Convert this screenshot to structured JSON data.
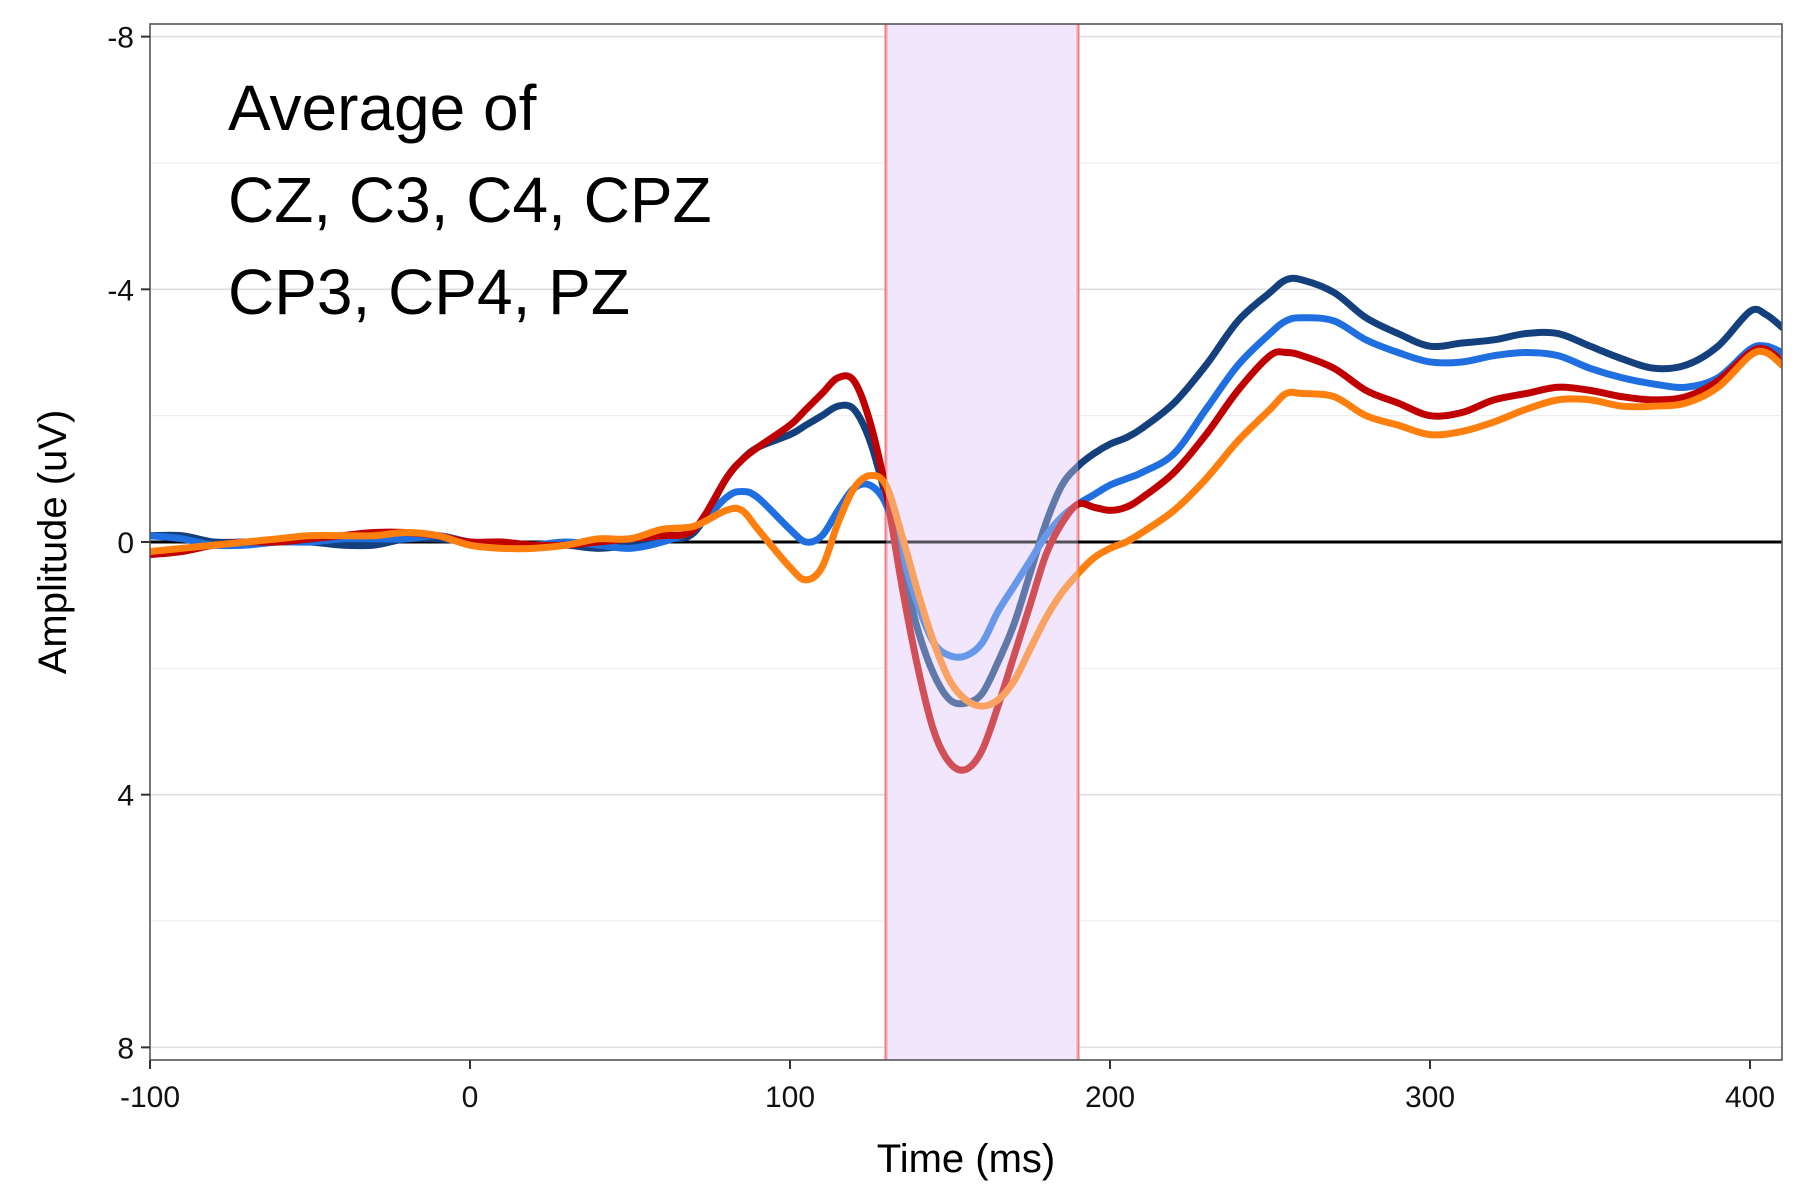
{
  "chart_data": {
    "type": "line",
    "title": "",
    "xlabel": "Time (ms)",
    "ylabel": "Amplitude (uV)",
    "xlim": [
      -100,
      410
    ],
    "ylim": [
      -8.2,
      8.2
    ],
    "y_reversed": true,
    "x_ticks": [
      -100,
      0,
      100,
      200,
      300,
      400
    ],
    "x_tick_labels": [
      "-100",
      "0",
      "100",
      "200",
      "300",
      "400"
    ],
    "y_ticks": [
      -8,
      -4,
      0,
      4,
      8
    ],
    "y_tick_labels": [
      "-8",
      "-4",
      "0",
      "4",
      "8"
    ],
    "grid": true,
    "legend": "none",
    "annotation": {
      "lines": [
        "Average of",
        "CZ, C3, C4, CPZ",
        "CP3, CP4, PZ"
      ]
    },
    "highlight_window": {
      "x_start": 130,
      "x_end": 190,
      "fill": "#f1e6fb",
      "edge_color": "#f08080"
    },
    "zero_line": 0,
    "x": [
      -100,
      -90,
      -80,
      -70,
      -60,
      -50,
      -40,
      -30,
      -20,
      -10,
      0,
      10,
      20,
      30,
      40,
      50,
      60,
      70,
      80,
      85,
      90,
      100,
      105,
      110,
      115,
      120,
      125,
      130,
      135,
      140,
      145,
      150,
      155,
      160,
      165,
      170,
      175,
      180,
      185,
      190,
      195,
      200,
      205,
      210,
      220,
      230,
      240,
      250,
      255,
      260,
      270,
      280,
      290,
      300,
      310,
      320,
      330,
      340,
      350,
      360,
      370,
      380,
      390,
      400,
      405,
      410
    ],
    "series": [
      {
        "color": "#14407d",
        "values": [
          -0.1,
          -0.1,
          0.0,
          0.0,
          0.0,
          0.0,
          0.05,
          0.05,
          -0.05,
          -0.05,
          0.0,
          0.05,
          0.05,
          0.05,
          0.1,
          0.05,
          -0.05,
          -0.15,
          -1.0,
          -1.3,
          -1.5,
          -1.7,
          -1.85,
          -2.0,
          -2.15,
          -2.1,
          -1.6,
          -0.7,
          0.4,
          1.4,
          2.1,
          2.5,
          2.55,
          2.4,
          1.9,
          1.3,
          0.5,
          -0.3,
          -0.9,
          -1.2,
          -1.4,
          -1.55,
          -1.65,
          -1.8,
          -2.2,
          -2.8,
          -3.5,
          -3.95,
          -4.15,
          -4.15,
          -3.95,
          -3.55,
          -3.3,
          -3.1,
          -3.15,
          -3.2,
          -3.3,
          -3.3,
          -3.1,
          -2.9,
          -2.75,
          -2.8,
          -3.1,
          -3.65,
          -3.6,
          -3.4
        ]
      },
      {
        "color": "#1f6fe0",
        "values": [
          -0.1,
          -0.05,
          0.05,
          0.05,
          0.0,
          0.0,
          -0.05,
          -0.05,
          -0.05,
          -0.1,
          0.0,
          0.05,
          0.05,
          0.0,
          0.05,
          0.1,
          0.0,
          -0.2,
          -0.7,
          -0.8,
          -0.7,
          -0.2,
          0.0,
          -0.1,
          -0.5,
          -0.85,
          -0.9,
          -0.6,
          0.2,
          1.0,
          1.6,
          1.8,
          1.8,
          1.6,
          1.1,
          0.7,
          0.3,
          -0.1,
          -0.4,
          -0.6,
          -0.75,
          -0.9,
          -1.0,
          -1.1,
          -1.4,
          -2.1,
          -2.8,
          -3.3,
          -3.5,
          -3.55,
          -3.5,
          -3.2,
          -3.0,
          -2.85,
          -2.85,
          -2.95,
          -3.0,
          -2.95,
          -2.75,
          -2.6,
          -2.5,
          -2.45,
          -2.6,
          -3.05,
          -3.1,
          -3.0
        ]
      },
      {
        "color": "#c00000",
        "values": [
          0.2,
          0.15,
          0.05,
          0.0,
          0.0,
          -0.05,
          -0.1,
          -0.15,
          -0.15,
          -0.1,
          0.0,
          0.0,
          0.05,
          0.05,
          0.0,
          -0.05,
          -0.1,
          -0.2,
          -1.0,
          -1.3,
          -1.5,
          -1.85,
          -2.1,
          -2.35,
          -2.6,
          -2.55,
          -1.9,
          -0.8,
          0.7,
          2.0,
          3.0,
          3.5,
          3.6,
          3.3,
          2.6,
          1.8,
          1.0,
          0.2,
          -0.3,
          -0.6,
          -0.55,
          -0.5,
          -0.55,
          -0.7,
          -1.1,
          -1.7,
          -2.4,
          -2.95,
          -3.0,
          -2.95,
          -2.75,
          -2.4,
          -2.2,
          -2.0,
          -2.05,
          -2.25,
          -2.35,
          -2.45,
          -2.4,
          -2.3,
          -2.25,
          -2.3,
          -2.55,
          -3.0,
          -3.05,
          -2.85
        ]
      },
      {
        "color": "#ff7f0e",
        "values": [
          0.15,
          0.1,
          0.05,
          0.0,
          -0.05,
          -0.1,
          -0.1,
          -0.1,
          -0.15,
          -0.1,
          0.05,
          0.1,
          0.1,
          0.05,
          -0.05,
          -0.05,
          -0.2,
          -0.25,
          -0.5,
          -0.5,
          -0.2,
          0.4,
          0.6,
          0.4,
          -0.3,
          -0.85,
          -1.05,
          -0.9,
          -0.1,
          0.8,
          1.6,
          2.2,
          2.5,
          2.6,
          2.5,
          2.2,
          1.7,
          1.2,
          0.8,
          0.5,
          0.25,
          0.1,
          0.0,
          -0.15,
          -0.5,
          -1.0,
          -1.6,
          -2.1,
          -2.35,
          -2.35,
          -2.3,
          -2.0,
          -1.85,
          -1.7,
          -1.75,
          -1.9,
          -2.1,
          -2.25,
          -2.25,
          -2.15,
          -2.15,
          -2.2,
          -2.45,
          -2.95,
          -3.0,
          -2.8
        ]
      }
    ]
  }
}
